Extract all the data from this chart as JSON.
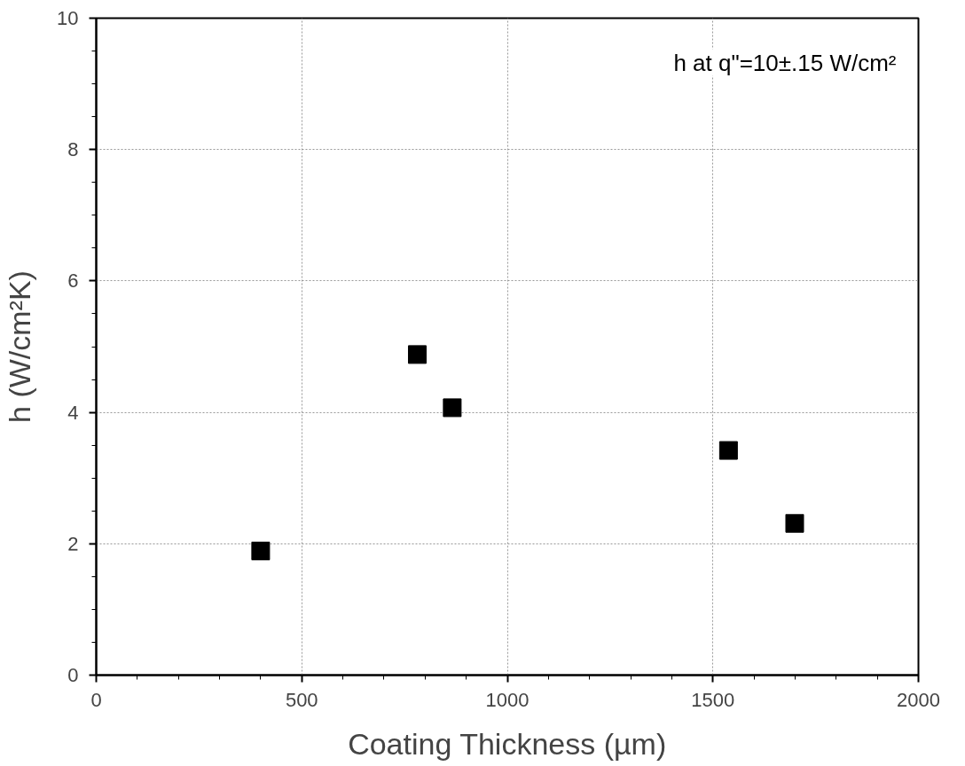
{
  "chart_data": {
    "type": "scatter",
    "xlabel": "Coating Thickness (µm)",
    "ylabel": "h (W/cm²K)",
    "annotations": [
      "h at q\"=10±.15 W/cm²"
    ],
    "x": [
      400,
      781,
      866,
      1538,
      1699
    ],
    "series": [
      {
        "color": "#000000",
        "values": [
          1.89,
          4.88,
          4.07,
          3.42,
          2.31
        ]
      }
    ],
    "xlim": [
      0,
      2000
    ],
    "ylim": [
      0,
      10
    ],
    "xticks": [
      0,
      500,
      1000,
      1500,
      2000
    ],
    "yticks": [
      0,
      2,
      4,
      6,
      8,
      10
    ],
    "grid": true,
    "marker": "square"
  }
}
